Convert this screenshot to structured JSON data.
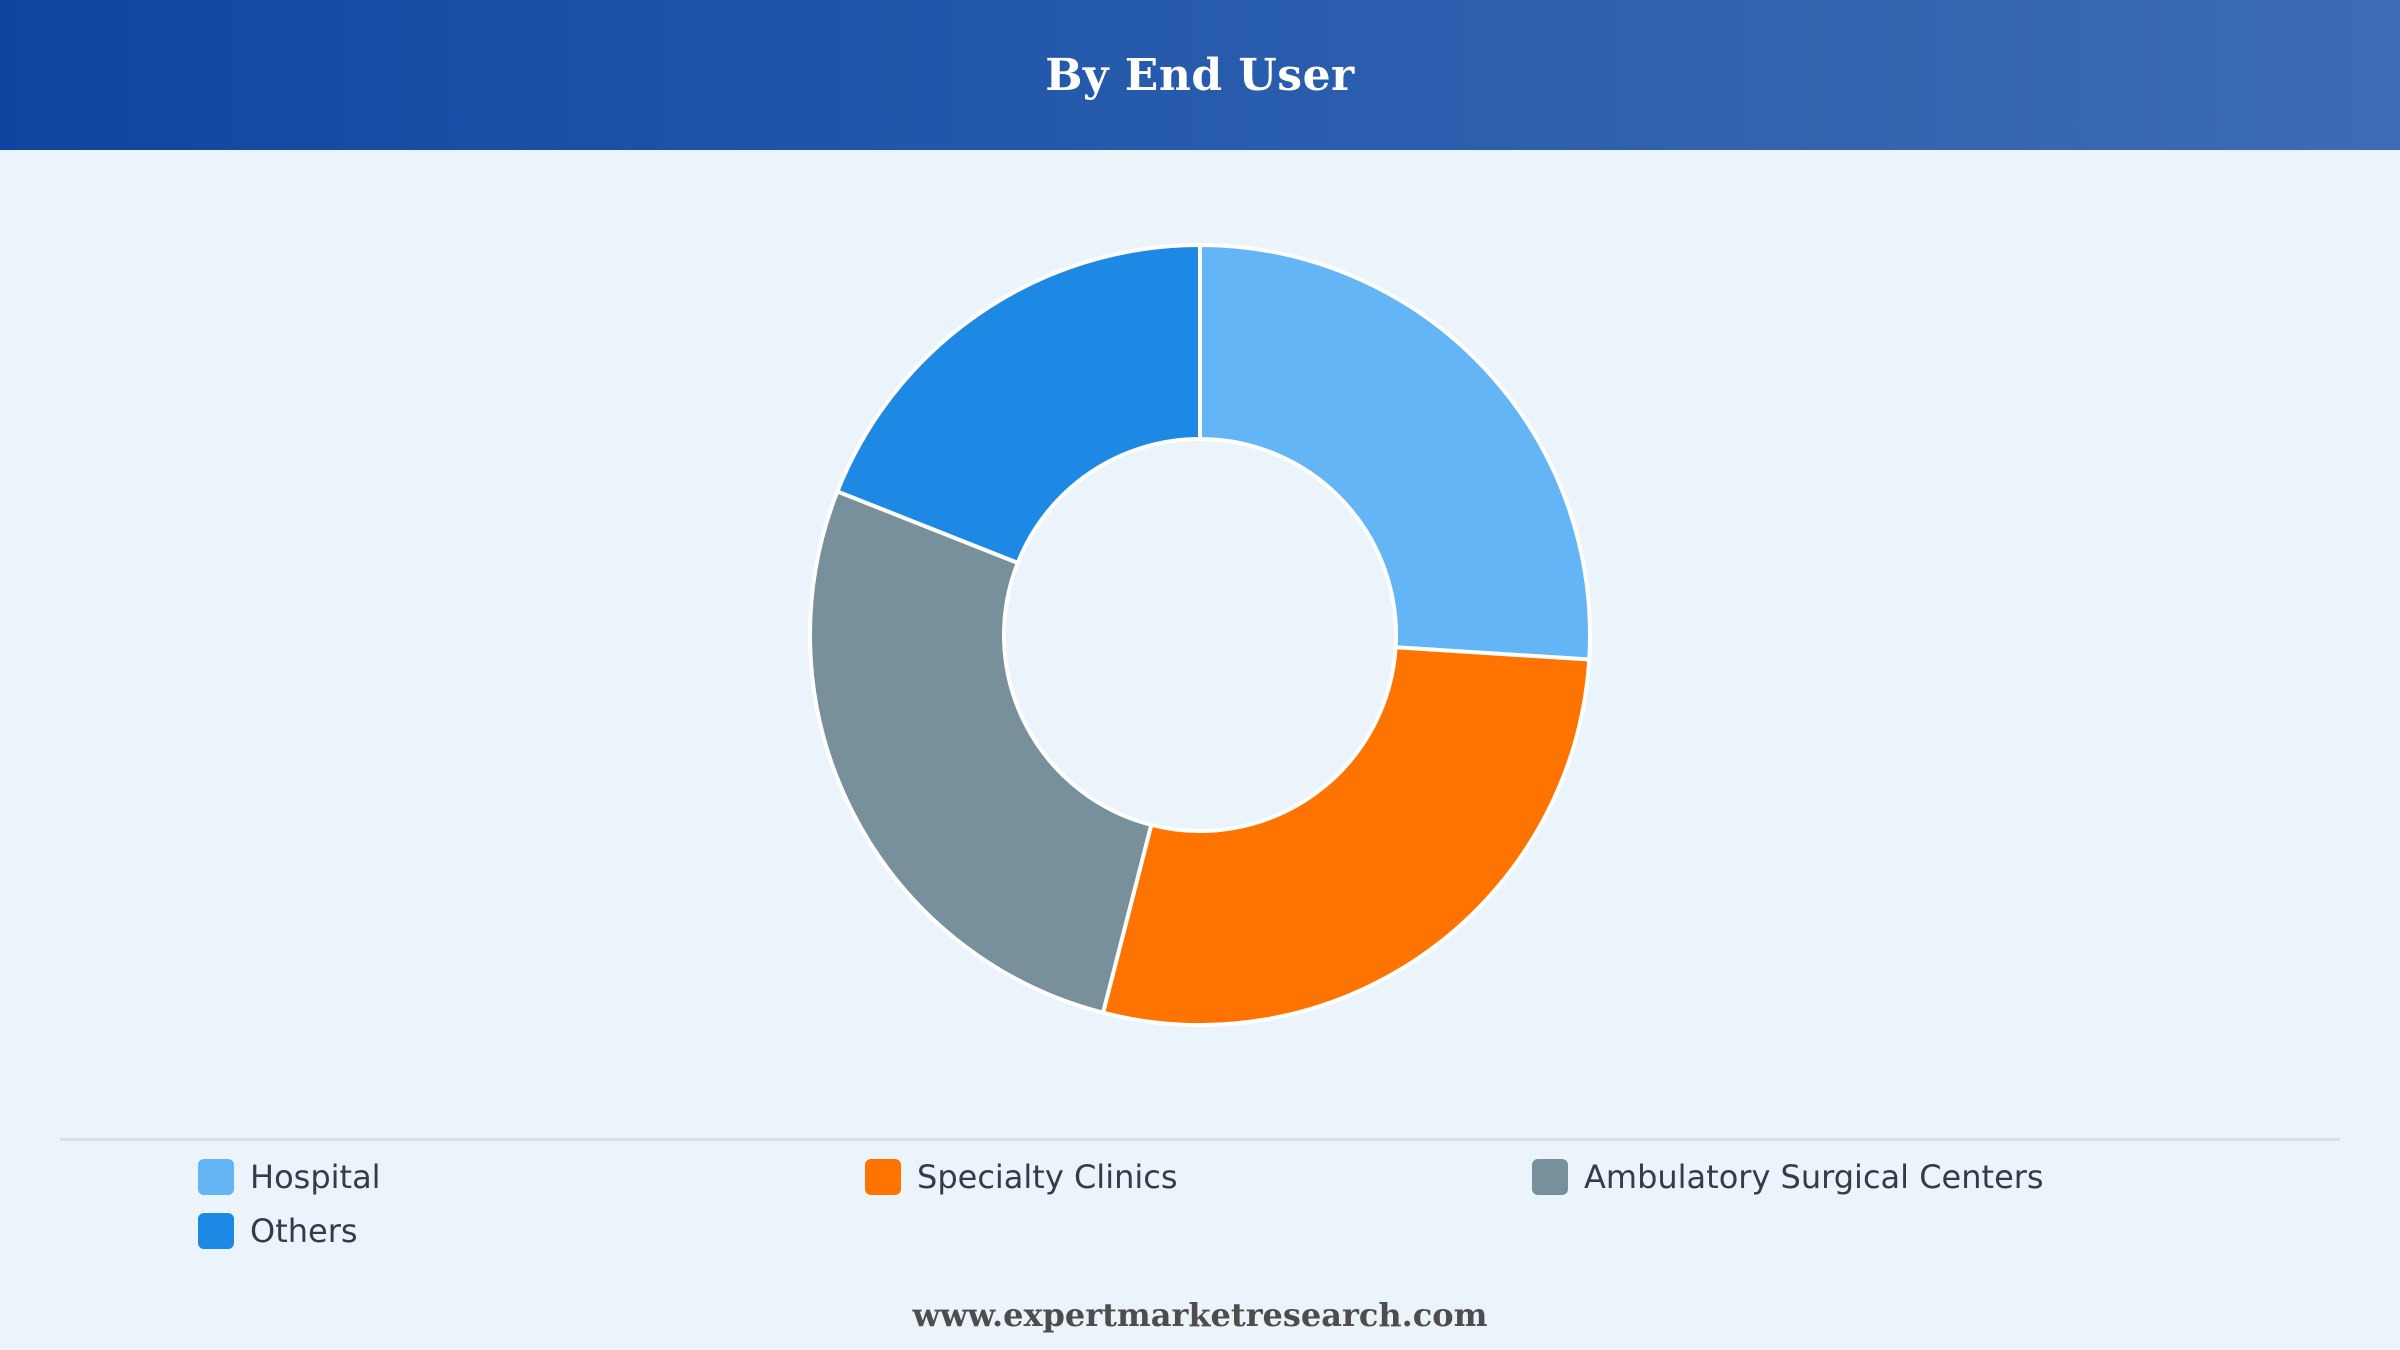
{
  "header": {
    "title": "By End User"
  },
  "chart_data": {
    "type": "pie",
    "variant": "donut",
    "title": "By End User",
    "categories": [
      "Hospital",
      "Specialty Clinics",
      "Ambulatory Surgical Centers",
      "Others"
    ],
    "values": [
      26,
      28,
      27,
      19
    ],
    "unit": "%",
    "colors": [
      "#64b5f6",
      "#ff7300",
      "#78909c",
      "#1e88e5"
    ],
    "start_angle_deg": 0,
    "direction": "clockwise",
    "legend": {
      "position": "bottom",
      "items": [
        {
          "label": "Hospital",
          "color": "#64b5f6"
        },
        {
          "label": "Specialty Clinics",
          "color": "#ff7300"
        },
        {
          "label": "Ambulatory Surgical Centers",
          "color": "#78909c"
        },
        {
          "label": "Others",
          "color": "#1e88e5"
        }
      ]
    }
  },
  "footer": {
    "source": "www.expertmarketresearch.com"
  }
}
